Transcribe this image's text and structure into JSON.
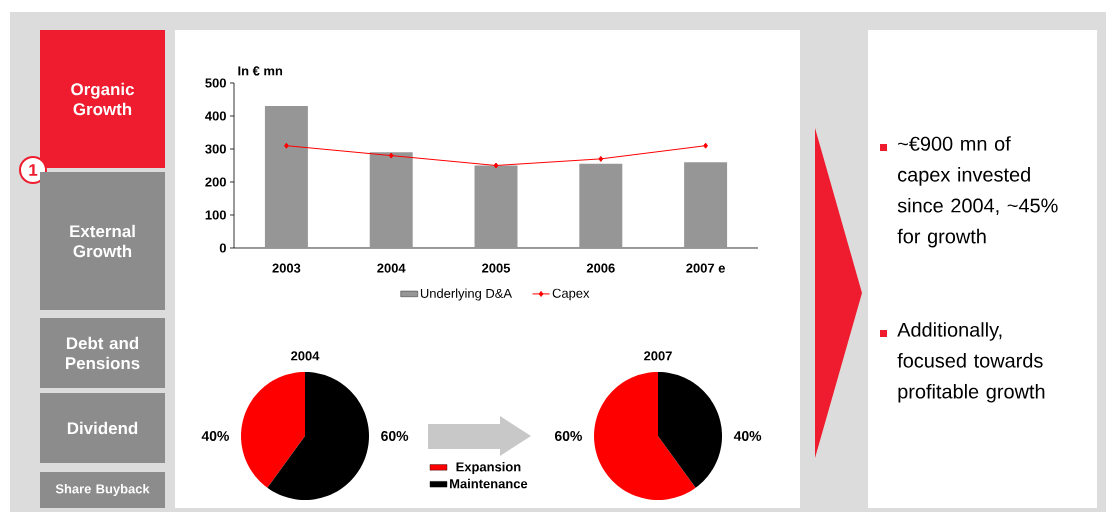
{
  "chart_data": [
    {
      "type": "bar",
      "ylabel": "In € mn",
      "categories": [
        "2003",
        "2004",
        "2005",
        "2006",
        "2007 e"
      ],
      "ylim": [
        0,
        500
      ],
      "yticks": [
        0,
        100,
        200,
        300,
        400,
        500
      ],
      "legend": "bottom",
      "marker": "diamond",
      "series": [
        {
          "name": "Underlying D&A",
          "type": "bar",
          "color": "#969696",
          "values": [
            430,
            290,
            250,
            255,
            260
          ]
        },
        {
          "name": "Capex",
          "type": "line",
          "color": "#ff0000",
          "values": [
            310,
            280,
            250,
            270,
            310
          ]
        }
      ]
    },
    {
      "type": "pie",
      "title": "2004",
      "categories": [
        "Expansion",
        "Maintenance"
      ],
      "values": [
        40,
        60
      ],
      "colors": [
        "#ff0000",
        "#000000"
      ],
      "value_labels": [
        "40%",
        "60%"
      ],
      "legend": "bottom right"
    },
    {
      "type": "pie",
      "title": "2007",
      "values": [
        60,
        40
      ],
      "colors": [
        "#ff0000",
        "#000000"
      ],
      "value_labels": [
        "60%",
        "40%"
      ]
    },
    {
      "type": "other",
      "annotations": [
        "Organic Growth",
        "1",
        "External Growth",
        "Debt and Pensions",
        "Dividend",
        "Share Buyback",
        "~€900 mn of capex invested since 2004, ~45% for growth",
        "Additionally, focused towards profitable growth"
      ]
    }
  ]
}
